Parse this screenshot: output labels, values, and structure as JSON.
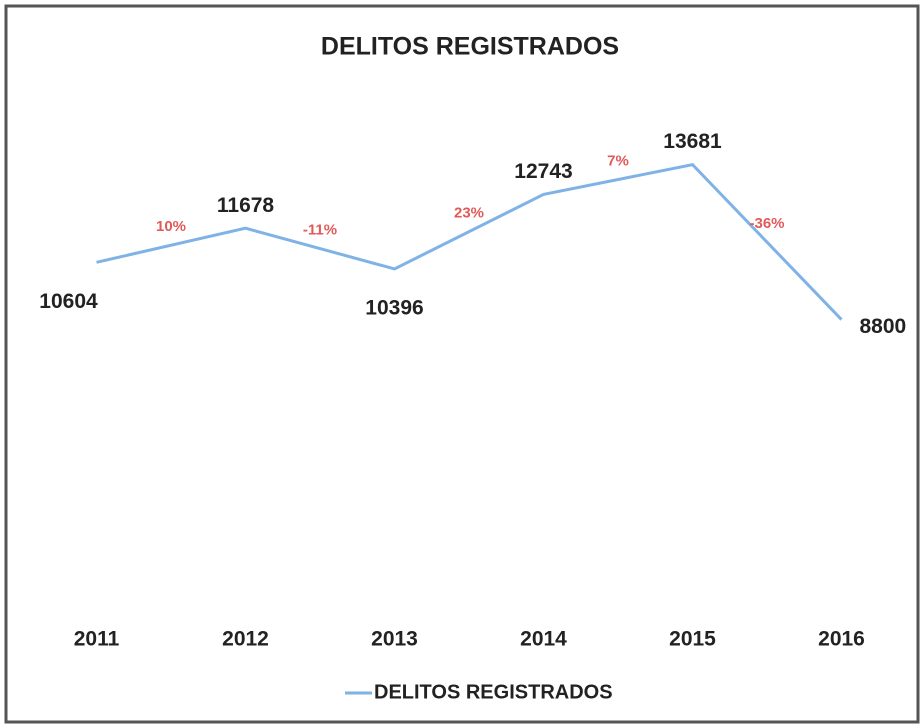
{
  "chart_data": {
    "type": "line",
    "title": "DELITOS REGISTRADOS",
    "categories": [
      "2011",
      "2012",
      "2013",
      "2014",
      "2015",
      "2016"
    ],
    "series": [
      {
        "name": "DELITOS REGISTRADOS",
        "color": "#7fb2e5",
        "values": [
          10604,
          11678,
          10396,
          12743,
          13681,
          8800
        ]
      }
    ],
    "annotations": [
      "10%",
      "-11%",
      "23%",
      "7%",
      "-36%"
    ],
    "annotation_color": "#e05a5a",
    "ylim": [
      0,
      16000
    ]
  }
}
